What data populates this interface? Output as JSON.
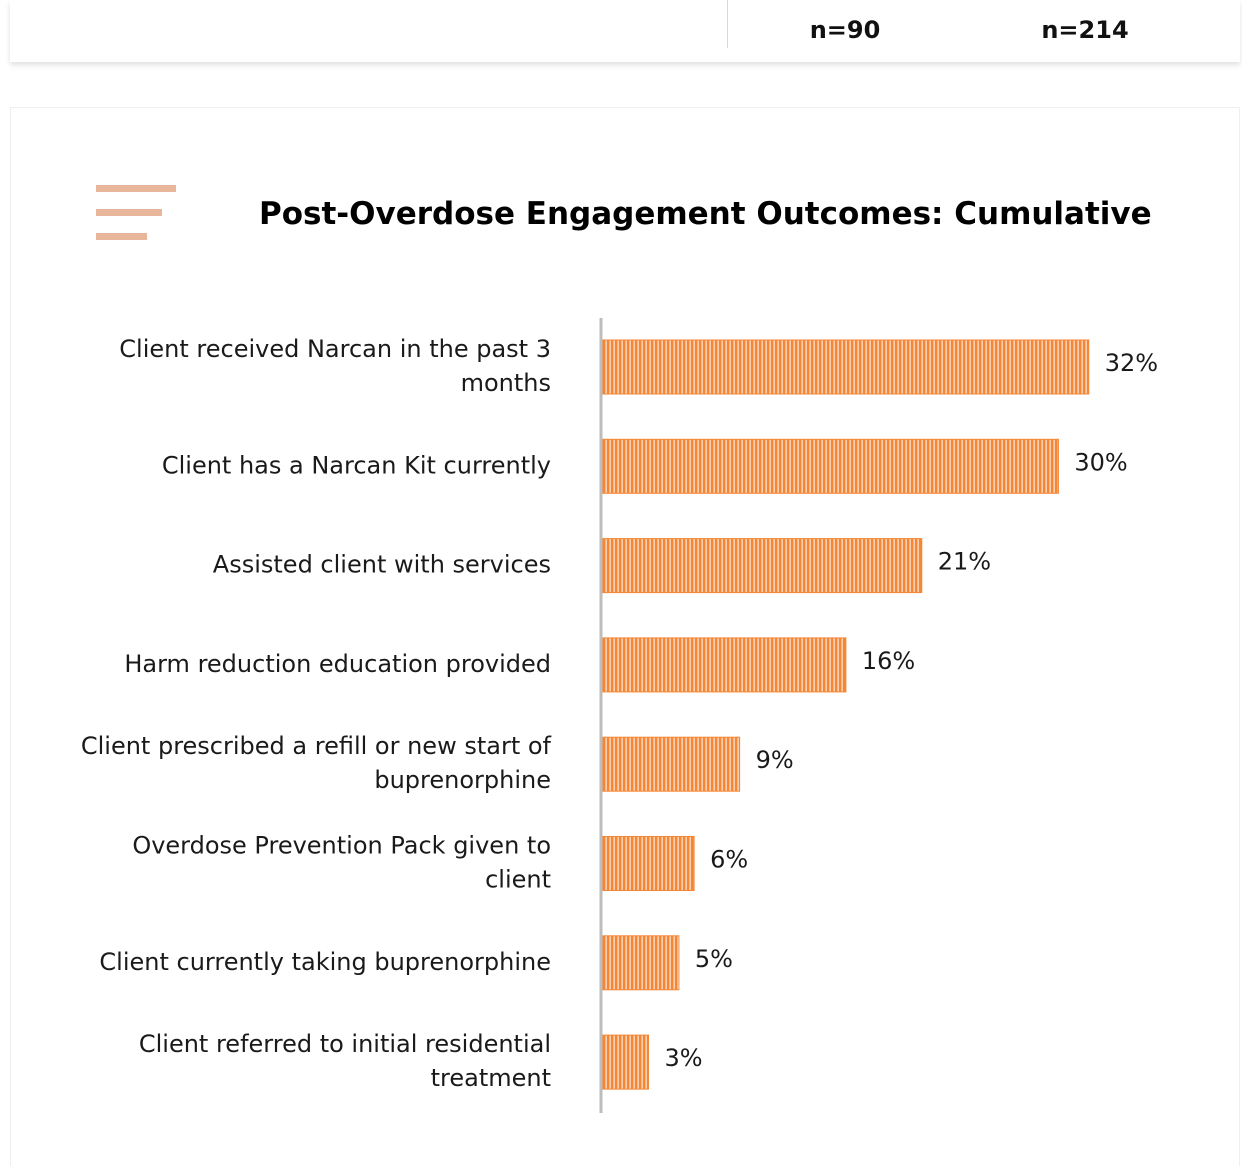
{
  "header": {
    "n_col1": "n=90",
    "n_col2": "n=214"
  },
  "icons": {
    "title_icon": "menu-lines-icon"
  },
  "colors": {
    "bar": "#f58634",
    "bar_stripe": "#ffffff",
    "axis": "#bdbdbd"
  },
  "chart_data": {
    "type": "bar",
    "orientation": "horizontal",
    "title": "Post-Overdose Engagement Outcomes: Cumulative",
    "categories": [
      [
        "Client received Narcan in the past 3",
        "months"
      ],
      [
        "Client has a Narcan Kit currently"
      ],
      [
        "Assisted client with services"
      ],
      [
        "Harm reduction education provided"
      ],
      [
        "Client prescribed a refill or new start of",
        "buprenorphine"
      ],
      [
        "Overdose Prevention Pack given to",
        "client"
      ],
      [
        "Client currently taking buprenorphine"
      ],
      [
        "Client referred to initial residential",
        "treatment"
      ]
    ],
    "values": [
      32,
      30,
      21,
      16,
      9,
      6,
      5,
      3
    ],
    "value_labels": [
      "32%",
      "30%",
      "21%",
      "16%",
      "9%",
      "6%",
      "5%",
      "3%"
    ],
    "unit": "%",
    "grid": false,
    "legend": "none"
  }
}
